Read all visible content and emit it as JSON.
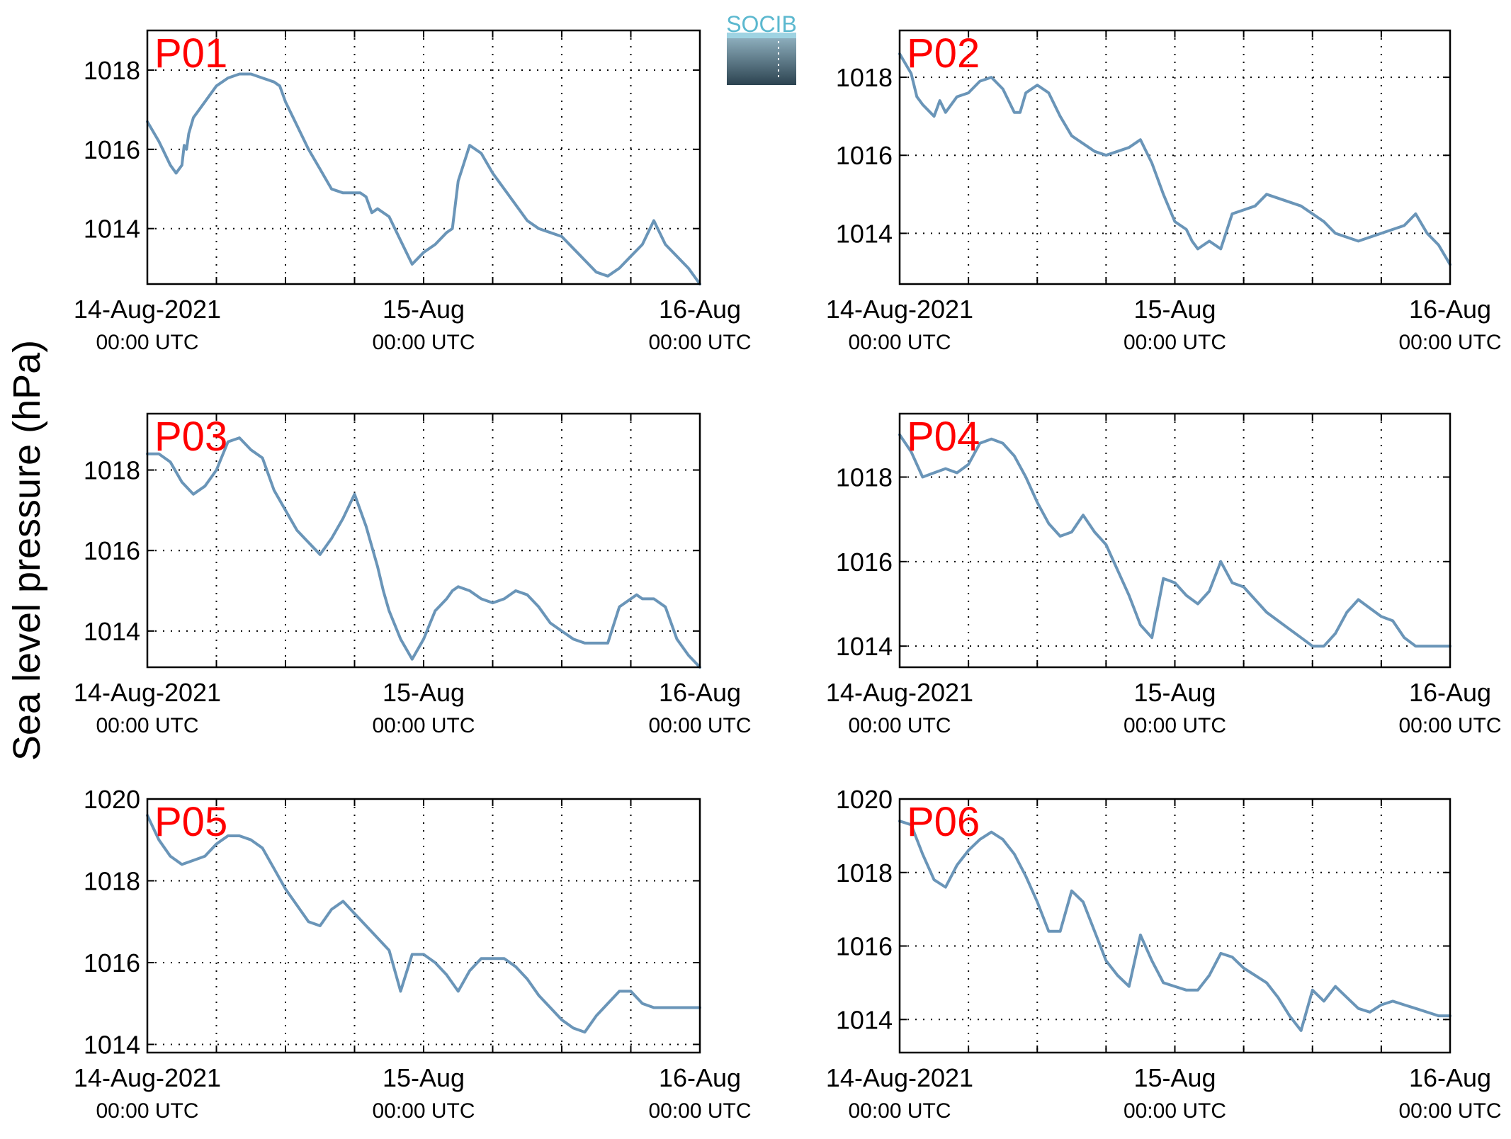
{
  "ylabel": "Sea level pressure (hPa)",
  "logo": {
    "text": "SOCIB",
    "color_top": "#5bb8cf",
    "color_bottom": "#2c4350"
  },
  "colors": {
    "series": "#6a95b8",
    "panel_label": "#ff0000"
  },
  "x_ticks": [
    {
      "main": "14-Aug-2021",
      "sub": "00:00 UTC"
    },
    {
      "main": "15-Aug",
      "sub": "00:00 UTC"
    },
    {
      "main": "16-Aug",
      "sub": "00:00 UTC"
    }
  ],
  "chart_data": [
    {
      "type": "line",
      "label": "P01",
      "x_unit": "hours since 14-Aug-2021 00:00 UTC",
      "xlim": [
        0,
        48
      ],
      "ylim": [
        1012.6,
        1019.0
      ],
      "yticks": [
        1014,
        1016,
        1018
      ],
      "grid": true,
      "x": [
        0,
        1,
        1.5,
        2,
        2.5,
        3,
        3.2,
        3.4,
        3.6,
        4,
        5,
        6,
        7,
        8,
        9,
        10,
        11,
        11.5,
        12,
        13,
        14,
        15,
        16,
        17,
        17.5,
        18,
        18.5,
        19,
        19.5,
        20,
        21,
        22,
        23,
        24,
        25,
        26,
        26.5,
        27,
        28,
        29,
        30,
        31,
        32,
        33,
        34,
        35,
        36,
        37,
        38,
        39,
        40,
        41,
        42,
        43,
        44,
        45,
        46,
        47,
        48
      ],
      "y": [
        1016.7,
        1016.2,
        1015.9,
        1015.6,
        1015.4,
        1015.6,
        1016.1,
        1016.0,
        1016.4,
        1016.8,
        1017.2,
        1017.6,
        1017.8,
        1017.9,
        1017.9,
        1017.8,
        1017.7,
        1017.6,
        1017.2,
        1016.6,
        1016.0,
        1015.5,
        1015.0,
        1014.9,
        1014.9,
        1014.9,
        1014.9,
        1014.8,
        1014.4,
        1014.5,
        1014.3,
        1013.7,
        1013.1,
        1013.4,
        1013.6,
        1013.9,
        1014.0,
        1015.2,
        1016.1,
        1015.9,
        1015.4,
        1015.0,
        1014.6,
        1014.2,
        1014.0,
        1013.9,
        1013.8,
        1013.5,
        1013.2,
        1012.9,
        1012.8,
        1013.0,
        1013.3,
        1013.6,
        1014.2,
        1013.6,
        1013.3,
        1013.0,
        1012.6
      ]
    },
    {
      "type": "line",
      "label": "P02",
      "x_unit": "hours since 14-Aug-2021 00:00 UTC",
      "xlim": [
        0,
        48
      ],
      "ylim": [
        1012.7,
        1019.2
      ],
      "yticks": [
        1014,
        1016,
        1018
      ],
      "grid": true,
      "x": [
        0,
        1,
        1.5,
        2,
        3,
        3.5,
        4,
        5,
        6,
        7,
        8,
        9,
        10,
        10.5,
        11,
        12,
        13,
        14,
        15,
        16,
        17,
        18,
        19,
        20,
        21,
        21.5,
        22,
        23,
        24,
        25,
        25.5,
        26,
        27,
        28,
        29,
        30,
        31,
        32,
        33,
        34,
        35,
        36,
        37,
        38,
        39,
        40,
        41,
        42,
        43,
        44,
        45,
        46,
        47,
        48
      ],
      "y": [
        1018.6,
        1018.1,
        1017.5,
        1017.3,
        1017.0,
        1017.4,
        1017.1,
        1017.5,
        1017.6,
        1017.9,
        1018.0,
        1017.7,
        1017.1,
        1017.1,
        1017.6,
        1017.8,
        1017.6,
        1017.0,
        1016.5,
        1016.3,
        1016.1,
        1016.0,
        1016.1,
        1016.2,
        1016.4,
        1016.1,
        1015.8,
        1015.0,
        1014.3,
        1014.1,
        1013.8,
        1013.6,
        1013.8,
        1013.6,
        1014.5,
        1014.6,
        1014.7,
        1015.0,
        1014.9,
        1014.8,
        1014.7,
        1014.5,
        1014.3,
        1014.0,
        1013.9,
        1013.8,
        1013.9,
        1014.0,
        1014.1,
        1014.2,
        1014.5,
        1014.0,
        1013.7,
        1013.2
      ]
    },
    {
      "type": "line",
      "label": "P03",
      "x_unit": "hours since 14-Aug-2021 00:00 UTC",
      "xlim": [
        0,
        48
      ],
      "ylim": [
        1013.1,
        1019.4
      ],
      "yticks": [
        1014,
        1016,
        1018
      ],
      "grid": true,
      "x": [
        0,
        1,
        2,
        3,
        4,
        5,
        6,
        7,
        8,
        9,
        10,
        11,
        12,
        13,
        14,
        15,
        16,
        17,
        18,
        19,
        20,
        20.5,
        21,
        22,
        23,
        24,
        25,
        26,
        26.5,
        27,
        28,
        29,
        30,
        31,
        32,
        33,
        34,
        35,
        36,
        37,
        38,
        39,
        40,
        41,
        42,
        42.5,
        43,
        44,
        45,
        46,
        47,
        48
      ],
      "y": [
        1018.4,
        1018.4,
        1018.2,
        1017.7,
        1017.4,
        1017.6,
        1018.0,
        1018.7,
        1018.8,
        1018.5,
        1018.3,
        1017.5,
        1017.0,
        1016.5,
        1016.2,
        1015.9,
        1016.3,
        1016.8,
        1017.4,
        1016.6,
        1015.6,
        1015.0,
        1014.5,
        1013.8,
        1013.3,
        1013.8,
        1014.5,
        1014.8,
        1015.0,
        1015.1,
        1015.0,
        1014.8,
        1014.7,
        1014.8,
        1015.0,
        1014.9,
        1014.6,
        1014.2,
        1014.0,
        1013.8,
        1013.7,
        1013.7,
        1013.7,
        1014.6,
        1014.8,
        1014.9,
        1014.8,
        1014.8,
        1014.6,
        1013.8,
        1013.4,
        1013.1
      ]
    },
    {
      "type": "line",
      "label": "P04",
      "x_unit": "hours since 14-Aug-2021 00:00 UTC",
      "xlim": [
        0,
        48
      ],
      "ylim": [
        1013.5,
        1019.5
      ],
      "yticks": [
        1014,
        1016,
        1018
      ],
      "grid": true,
      "x": [
        0,
        1,
        1.5,
        2,
        3,
        4,
        5,
        6,
        7,
        8,
        9,
        10,
        11,
        12,
        13,
        14,
        15,
        16,
        17,
        18,
        19,
        20,
        21,
        22,
        23,
        24,
        25,
        26,
        27,
        28,
        29,
        30,
        31,
        32,
        33,
        34,
        35,
        36,
        37,
        38,
        39,
        40,
        41,
        42,
        43,
        44,
        45,
        46,
        47,
        48
      ],
      "y": [
        1019.0,
        1018.6,
        1018.3,
        1018.0,
        1018.1,
        1018.2,
        1018.1,
        1018.3,
        1018.8,
        1018.9,
        1018.8,
        1018.5,
        1018.0,
        1017.4,
        1016.9,
        1016.6,
        1016.7,
        1017.1,
        1016.7,
        1016.4,
        1015.8,
        1015.2,
        1014.5,
        1014.2,
        1015.6,
        1015.5,
        1015.2,
        1015.0,
        1015.3,
        1016.0,
        1015.5,
        1015.4,
        1015.1,
        1014.8,
        1014.6,
        1014.4,
        1014.2,
        1014.0,
        1014.0,
        1014.3,
        1014.8,
        1015.1,
        1014.9,
        1014.7,
        1014.6,
        1014.2,
        1014.0,
        1014.0,
        1014.0,
        1014.0
      ]
    },
    {
      "type": "line",
      "label": "P05",
      "x_unit": "hours since 14-Aug-2021 00:00 UTC",
      "xlim": [
        0,
        48
      ],
      "ylim": [
        1013.8,
        1020.0
      ],
      "yticks": [
        1014,
        1016,
        1018,
        1020
      ],
      "grid": true,
      "x": [
        0,
        1,
        2,
        3,
        4,
        5,
        6,
        7,
        8,
        9,
        10,
        11,
        12,
        13,
        14,
        15,
        16,
        17,
        18,
        19,
        20,
        21,
        22,
        23,
        24,
        25,
        26,
        27,
        28,
        29,
        30,
        31,
        32,
        33,
        34,
        35,
        36,
        37,
        38,
        39,
        40,
        41,
        42,
        43,
        44,
        45,
        46,
        47,
        48
      ],
      "y": [
        1019.6,
        1019.0,
        1018.6,
        1018.4,
        1018.5,
        1018.6,
        1018.9,
        1019.1,
        1019.1,
        1019.0,
        1018.8,
        1018.3,
        1017.8,
        1017.4,
        1017.0,
        1016.9,
        1017.3,
        1017.5,
        1017.2,
        1016.9,
        1016.6,
        1016.3,
        1015.3,
        1016.2,
        1016.2,
        1016.0,
        1015.7,
        1015.3,
        1015.8,
        1016.1,
        1016.1,
        1016.1,
        1015.9,
        1015.6,
        1015.2,
        1014.9,
        1014.6,
        1014.4,
        1014.3,
        1014.7,
        1015.0,
        1015.3,
        1015.3,
        1015.0,
        1014.9,
        1014.9,
        1014.9,
        1014.9,
        1014.9
      ]
    },
    {
      "type": "line",
      "label": "P06",
      "x_unit": "hours since 14-Aug-2021 00:00 UTC",
      "xlim": [
        0,
        48
      ],
      "ylim": [
        1013.1,
        1020.0
      ],
      "yticks": [
        1014,
        1016,
        1018,
        1020
      ],
      "grid": true,
      "x": [
        0,
        1,
        2,
        3,
        4,
        5,
        6,
        7,
        8,
        9,
        10,
        11,
        12,
        13,
        14,
        15,
        16,
        17,
        18,
        19,
        20,
        21,
        22,
        23,
        24,
        25,
        26,
        27,
        28,
        29,
        30,
        31,
        32,
        33,
        34,
        35,
        36,
        37,
        38,
        39,
        40,
        41,
        42,
        43,
        44,
        45,
        46,
        47,
        48
      ],
      "y": [
        1019.4,
        1019.3,
        1018.5,
        1017.8,
        1017.6,
        1018.2,
        1018.6,
        1018.9,
        1019.1,
        1018.9,
        1018.5,
        1017.9,
        1017.2,
        1016.4,
        1016.4,
        1017.5,
        1017.2,
        1016.4,
        1015.6,
        1015.2,
        1014.9,
        1016.3,
        1015.6,
        1015.0,
        1014.9,
        1014.8,
        1014.8,
        1015.2,
        1015.8,
        1015.7,
        1015.4,
        1015.2,
        1015.0,
        1014.6,
        1014.1,
        1013.7,
        1014.8,
        1014.5,
        1014.9,
        1014.6,
        1014.3,
        1014.2,
        1014.4,
        1014.5,
        1014.4,
        1014.3,
        1014.2,
        1014.1,
        1014.1
      ]
    }
  ]
}
